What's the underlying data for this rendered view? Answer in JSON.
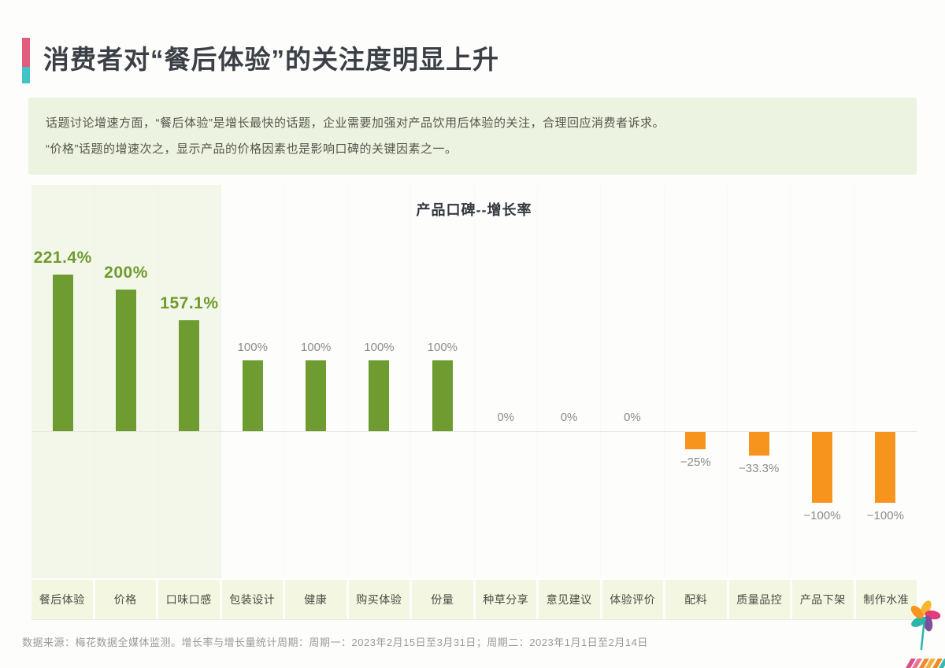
{
  "header": {
    "title": "消费者对“餐后体验”的关注度明显上升",
    "accent_colors": [
      "#e25c7d",
      "#43c3c9"
    ]
  },
  "summary": {
    "line1": "话题讨论增速方面，“餐后体验”是增长最快的话题，企业需要加强对产品饮用后体验的关注，合理回应消费者诉求。",
    "line2": "“价格”话题的增速次之，显示产品的价格因素也是影响口碑的关键因素之一。"
  },
  "chart_data": {
    "type": "bar",
    "title": "产品口碑--增长率",
    "categories": [
      "餐后体验",
      "价格",
      "口味口感",
      "包装设计",
      "健康",
      "购买体验",
      "份量",
      "种草分享",
      "意见建议",
      "体验评价",
      "配料",
      "质量品控",
      "产品下架",
      "制作水准"
    ],
    "values": [
      221.4,
      200,
      157.1,
      100,
      100,
      100,
      100,
      0,
      0,
      0,
      -25,
      -33.3,
      -100,
      -100
    ],
    "labels": [
      "221.4%",
      "200%",
      "157.1%",
      "100%",
      "100%",
      "100%",
      "100%",
      "0%",
      "0%",
      "0%",
      "−25%",
      "−33.3%",
      "−100%",
      "−100%"
    ],
    "highlight_count": 3,
    "ylim": [
      -208,
      348
    ],
    "grid": false,
    "legend": null,
    "xlabel": "",
    "ylabel": "",
    "colors": {
      "positive": "#6f9c30",
      "negative": "#f7941e",
      "highlight_label": "#6f9b2d",
      "label": "#8c8c8c",
      "highlight_band": "#f3f7ea"
    }
  },
  "footer": {
    "source": "数据来源：梅花数据全媒体监测。增长率与增长量统计周期：周期一：2023年2月15日至3月31日；周期二：2023年1月1日至2月14日"
  },
  "logo": {
    "name": "pinwheel-logo",
    "petal_colors": [
      "#f7b52c",
      "#e23a7a",
      "#7d4e9e",
      "#2cb5ab",
      "#f7941e"
    ],
    "stem_color": "#2cb5ab",
    "stripe_colors": [
      "#d94f86",
      "#e8739d",
      "#f08a2c",
      "#f5ae3d",
      "#ef8a2a",
      "#39b8b0",
      "#7a5ba5"
    ]
  }
}
